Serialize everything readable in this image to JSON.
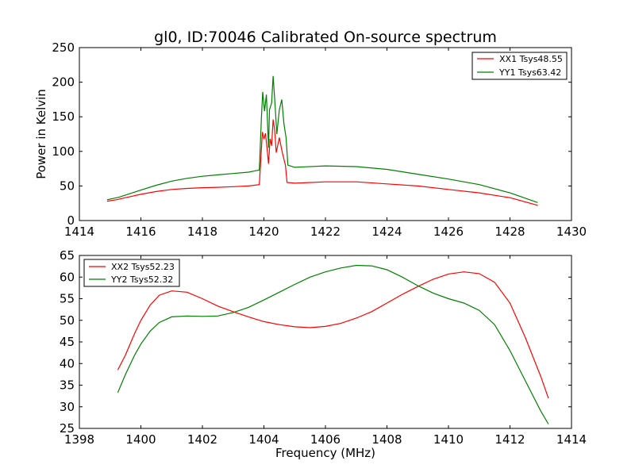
{
  "figure": {
    "title": "gl0, ID:70046 Calibrated On-source spectrum",
    "colors": {
      "red": "#ff0000",
      "green": "#007f00",
      "axes": "#000000"
    }
  },
  "chart_data": [
    {
      "type": "line",
      "title": "gl0, ID:70046 Calibrated On-source spectrum",
      "xlabel": "",
      "ylabel": "Power in Kelvin",
      "xlim": [
        1414,
        1430
      ],
      "ylim": [
        0,
        250
      ],
      "xticks": [
        1414,
        1416,
        1418,
        1420,
        1422,
        1424,
        1426,
        1428,
        1430
      ],
      "yticks": [
        0,
        50,
        100,
        150,
        200,
        250
      ],
      "grid": false,
      "legend_position": "top-right",
      "series": [
        {
          "name": "XX1 Tsys48.55",
          "color": "#ff0000",
          "points": [
            [
              1414.9,
              28
            ],
            [
              1415.2,
              30
            ],
            [
              1415.5,
              33
            ],
            [
              1416.0,
              38
            ],
            [
              1416.5,
              42
            ],
            [
              1417.0,
              45
            ],
            [
              1417.5,
              46.5
            ],
            [
              1418.0,
              47.5
            ],
            [
              1418.5,
              48
            ],
            [
              1419.0,
              49
            ],
            [
              1419.5,
              50
            ],
            [
              1419.85,
              52
            ],
            [
              1419.95,
              128
            ],
            [
              1420.0,
              118
            ],
            [
              1420.05,
              126
            ],
            [
              1420.1,
              105
            ],
            [
              1420.15,
              82
            ],
            [
              1420.2,
              118
            ],
            [
              1420.25,
              108
            ],
            [
              1420.3,
              146
            ],
            [
              1420.35,
              130
            ],
            [
              1420.4,
              98
            ],
            [
              1420.5,
              120
            ],
            [
              1420.6,
              98
            ],
            [
              1420.7,
              80
            ],
            [
              1420.75,
              55
            ],
            [
              1421.0,
              54
            ],
            [
              1422.0,
              56
            ],
            [
              1423.0,
              56
            ],
            [
              1424.0,
              53
            ],
            [
              1425.0,
              50
            ],
            [
              1426.0,
              45
            ],
            [
              1427.0,
              40
            ],
            [
              1428.0,
              33
            ],
            [
              1428.9,
              22
            ]
          ]
        },
        {
          "name": "YY1 Tsys63.42",
          "color": "#007f00",
          "points": [
            [
              1414.9,
              30
            ],
            [
              1415.3,
              34
            ],
            [
              1416.0,
              44
            ],
            [
              1416.5,
              51
            ],
            [
              1417.0,
              57
            ],
            [
              1417.5,
              61
            ],
            [
              1418.0,
              64
            ],
            [
              1418.5,
              66
            ],
            [
              1419.0,
              68
            ],
            [
              1419.5,
              70
            ],
            [
              1419.85,
              73
            ],
            [
              1419.92,
              150
            ],
            [
              1419.96,
              186
            ],
            [
              1420.02,
              158
            ],
            [
              1420.08,
              182
            ],
            [
              1420.12,
              140
            ],
            [
              1420.15,
              105
            ],
            [
              1420.18,
              160
            ],
            [
              1420.25,
              170
            ],
            [
              1420.3,
              209
            ],
            [
              1420.35,
              175
            ],
            [
              1420.42,
              125
            ],
            [
              1420.5,
              160
            ],
            [
              1420.58,
              175
            ],
            [
              1420.65,
              140
            ],
            [
              1420.72,
              120
            ],
            [
              1420.78,
              80
            ],
            [
              1421.0,
              77
            ],
            [
              1422.0,
              79
            ],
            [
              1423.0,
              78
            ],
            [
              1424.0,
              74
            ],
            [
              1425.0,
              67
            ],
            [
              1426.0,
              60
            ],
            [
              1427.0,
              52
            ],
            [
              1428.0,
              40
            ],
            [
              1428.9,
              26
            ]
          ]
        }
      ]
    },
    {
      "type": "line",
      "xlabel": "Frequency (MHz)",
      "ylabel": "",
      "xlim": [
        1398,
        1414
      ],
      "ylim": [
        25,
        65
      ],
      "xticks": [
        1398,
        1400,
        1402,
        1404,
        1406,
        1408,
        1410,
        1412,
        1414
      ],
      "yticks": [
        25,
        30,
        35,
        40,
        45,
        50,
        55,
        60,
        65
      ],
      "grid": false,
      "legend_position": "top-left",
      "series": [
        {
          "name": "XX2 Tsys52.23",
          "color": "#ff0000",
          "points": [
            [
              1399.25,
              38.5
            ],
            [
              1399.5,
              42
            ],
            [
              1399.8,
              47
            ],
            [
              1400.0,
              50
            ],
            [
              1400.3,
              53.5
            ],
            [
              1400.6,
              55.8
            ],
            [
              1401.0,
              56.8
            ],
            [
              1401.5,
              56.5
            ],
            [
              1402.0,
              55
            ],
            [
              1402.5,
              53.3
            ],
            [
              1403.0,
              52
            ],
            [
              1403.5,
              50.8
            ],
            [
              1404.0,
              49.7
            ],
            [
              1404.5,
              49
            ],
            [
              1405.0,
              48.5
            ],
            [
              1405.5,
              48.3
            ],
            [
              1406.0,
              48.6
            ],
            [
              1406.5,
              49.3
            ],
            [
              1407.0,
              50.5
            ],
            [
              1407.5,
              52
            ],
            [
              1408.0,
              54
            ],
            [
              1408.5,
              56
            ],
            [
              1409.0,
              57.8
            ],
            [
              1409.5,
              59.5
            ],
            [
              1410.0,
              60.7
            ],
            [
              1410.5,
              61.2
            ],
            [
              1411.0,
              60.8
            ],
            [
              1411.5,
              58.8
            ],
            [
              1412.0,
              54
            ],
            [
              1412.5,
              46
            ],
            [
              1413.0,
              37
            ],
            [
              1413.25,
              32
            ]
          ]
        },
        {
          "name": "YY2 Tsys52.32",
          "color": "#007f00",
          "points": [
            [
              1399.25,
              33.3
            ],
            [
              1399.5,
              37.5
            ],
            [
              1399.8,
              42
            ],
            [
              1400.0,
              44.5
            ],
            [
              1400.3,
              47.5
            ],
            [
              1400.6,
              49.5
            ],
            [
              1401.0,
              50.8
            ],
            [
              1401.5,
              51
            ],
            [
              1402.0,
              50.9
            ],
            [
              1402.5,
              51
            ],
            [
              1403.0,
              51.8
            ],
            [
              1403.5,
              53
            ],
            [
              1404.0,
              54.7
            ],
            [
              1404.5,
              56.5
            ],
            [
              1405.0,
              58.3
            ],
            [
              1405.5,
              60
            ],
            [
              1406.0,
              61.2
            ],
            [
              1406.5,
              62.1
            ],
            [
              1407.0,
              62.7
            ],
            [
              1407.5,
              62.6
            ],
            [
              1408.0,
              61.7
            ],
            [
              1408.5,
              60
            ],
            [
              1409.0,
              58
            ],
            [
              1409.5,
              56.3
            ],
            [
              1410.0,
              55
            ],
            [
              1410.5,
              54
            ],
            [
              1411.0,
              52.3
            ],
            [
              1411.5,
              49
            ],
            [
              1412.0,
              43
            ],
            [
              1412.5,
              36
            ],
            [
              1413.0,
              29
            ],
            [
              1413.25,
              26
            ]
          ]
        }
      ]
    }
  ]
}
